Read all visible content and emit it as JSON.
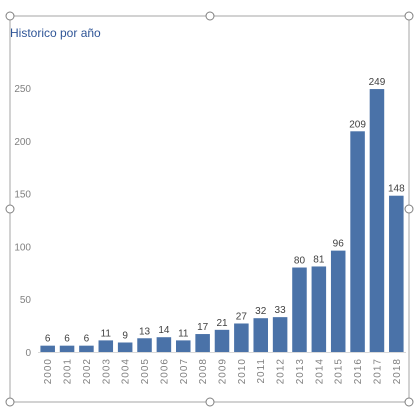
{
  "chart_data": {
    "type": "bar",
    "title": "Historico por año",
    "xlabel": "",
    "ylabel": "",
    "categories": [
      "2000",
      "2001",
      "2002",
      "2003",
      "2004",
      "2005",
      "2006",
      "2007",
      "2008",
      "2009",
      "2010",
      "2011",
      "2012",
      "2013",
      "2014",
      "2015",
      "2016",
      "2017",
      "2018"
    ],
    "values": [
      6,
      6,
      6,
      11,
      9,
      13,
      14,
      11,
      17,
      21,
      27,
      32,
      33,
      80,
      81,
      96,
      209,
      249,
      148
    ],
    "ylim": [
      0,
      250
    ],
    "yticks": [
      0,
      50,
      100,
      150,
      200,
      250
    ],
    "grid": false,
    "legend": "none",
    "bar_color": "#4a72a8",
    "title_color": "#2f5597",
    "axis_text_color": "#808080",
    "label_color": "#404040"
  }
}
